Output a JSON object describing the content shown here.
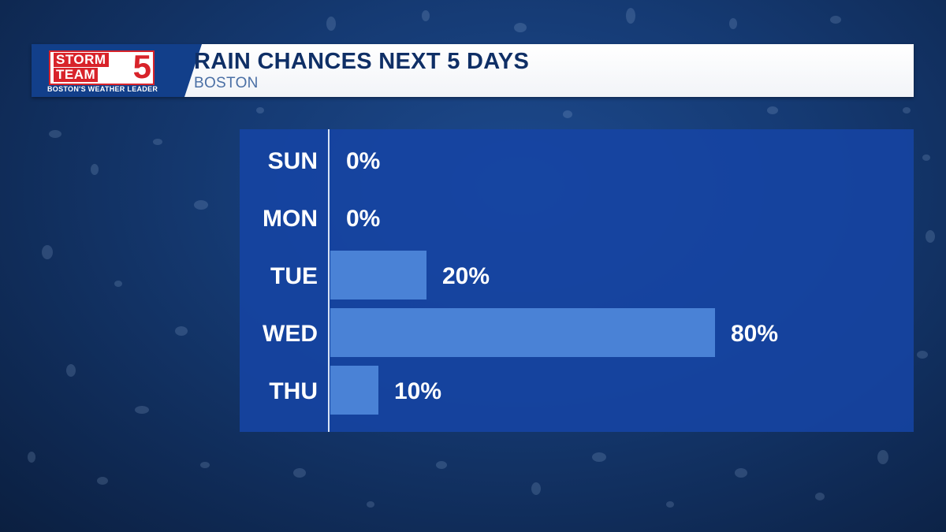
{
  "header": {
    "logo": {
      "line1": "STORM",
      "line2": "TEAM",
      "number": "5",
      "tagline": "BOSTON'S WEATHER LEADER"
    },
    "title": "RAIN CHANCES NEXT 5 DAYS",
    "subtitle": "BOSTON"
  },
  "colors": {
    "bar": "#4a82d6",
    "panel": "#1644a4",
    "axis": "#d7e3f5",
    "brand_red": "#d8232a"
  },
  "chart_data": {
    "type": "bar",
    "orientation": "horizontal",
    "title": "RAIN CHANCES NEXT 5 DAYS",
    "subtitle": "BOSTON",
    "categories": [
      "SUN",
      "MON",
      "TUE",
      "WED",
      "THU"
    ],
    "values": [
      0,
      0,
      20,
      80,
      10
    ],
    "value_labels": [
      "0%",
      "0%",
      "20%",
      "80%",
      "10%"
    ],
    "xlim": [
      0,
      100
    ],
    "grid": false,
    "legend": "none"
  }
}
